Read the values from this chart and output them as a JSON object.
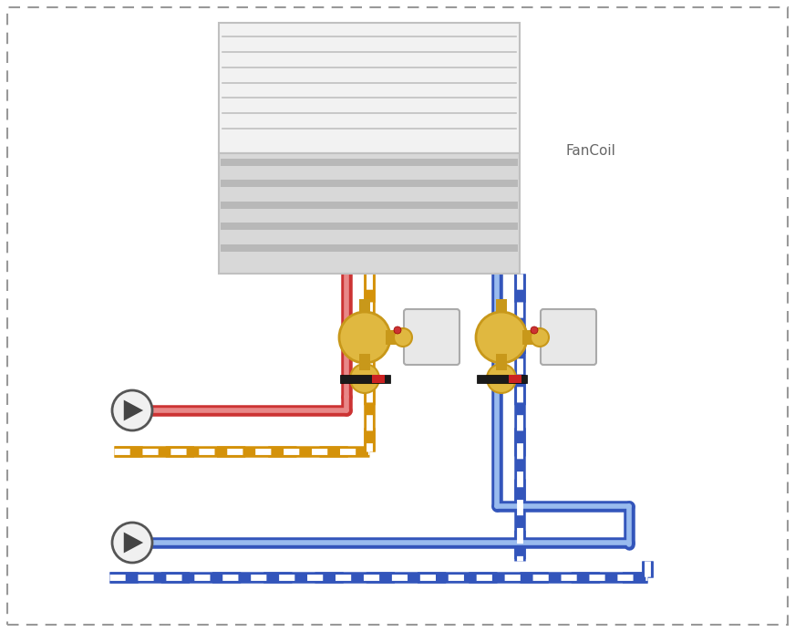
{
  "bg_color": "#ffffff",
  "fancoil_label": "FanCoil",
  "pipe_red": "#cc3333",
  "pipe_red_light": "#e88888",
  "pipe_orange": "#d4920a",
  "pipe_orange_light": "#f5d080",
  "pipe_blue": "#3355bb",
  "pipe_blue_light": "#99bbee",
  "brass": "#c8981a",
  "brass_light": "#e0b840",
  "actuator_color": "#e8e8e8"
}
